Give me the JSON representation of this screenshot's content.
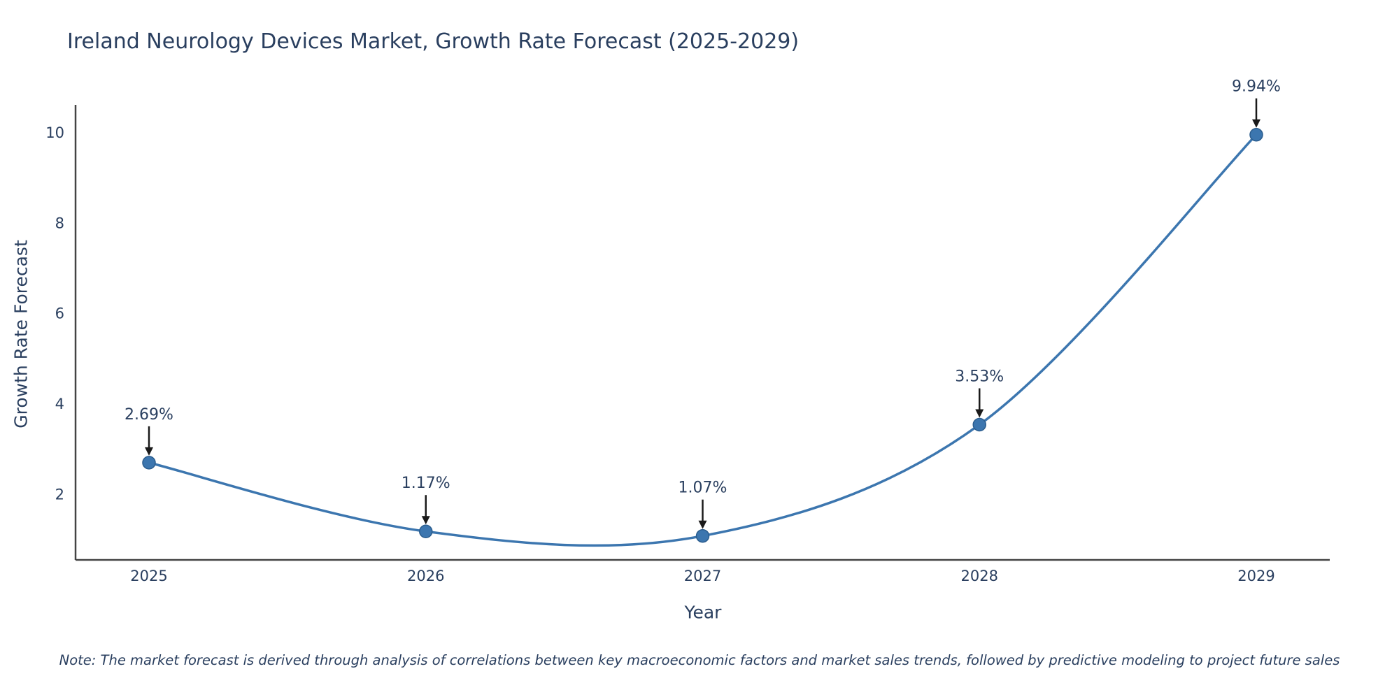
{
  "title": "Ireland Neurology Devices Market, Growth Rate Forecast (2025-2029)",
  "note": "Note: The market forecast is derived through analysis of correlations between key macroeconomic factors and market sales trends, followed by predictive modeling to project future sales",
  "chart_data": {
    "type": "line",
    "line_shape": "spline",
    "title": "Ireland Neurology Devices Market, Growth Rate Forecast (2025-2029)",
    "xlabel": "Year",
    "ylabel": "Growth Rate Forecast",
    "categories": [
      "2025",
      "2026",
      "2027",
      "2028",
      "2029"
    ],
    "values": [
      2.69,
      1.17,
      1.07,
      3.53,
      9.94
    ],
    "point_labels": [
      "2.69%",
      "1.17%",
      "1.07%",
      "3.53%",
      "9.94%"
    ],
    "yticks": [
      2,
      4,
      6,
      8,
      10
    ],
    "ylim": [
      0.54,
      10.6
    ],
    "grid": false,
    "legend": "none",
    "markers": true,
    "annotations": "value labels with down arrows above each point",
    "colors": {
      "line": "#3c76af",
      "marker": "#3c76af",
      "marker_stroke": "#2b5d8e",
      "text": "#2a3f5f",
      "tick_text": "#2a3f5f",
      "axis": "#444444",
      "annotation_arrow": "#1a1a1a",
      "background": "#ffffff"
    }
  }
}
